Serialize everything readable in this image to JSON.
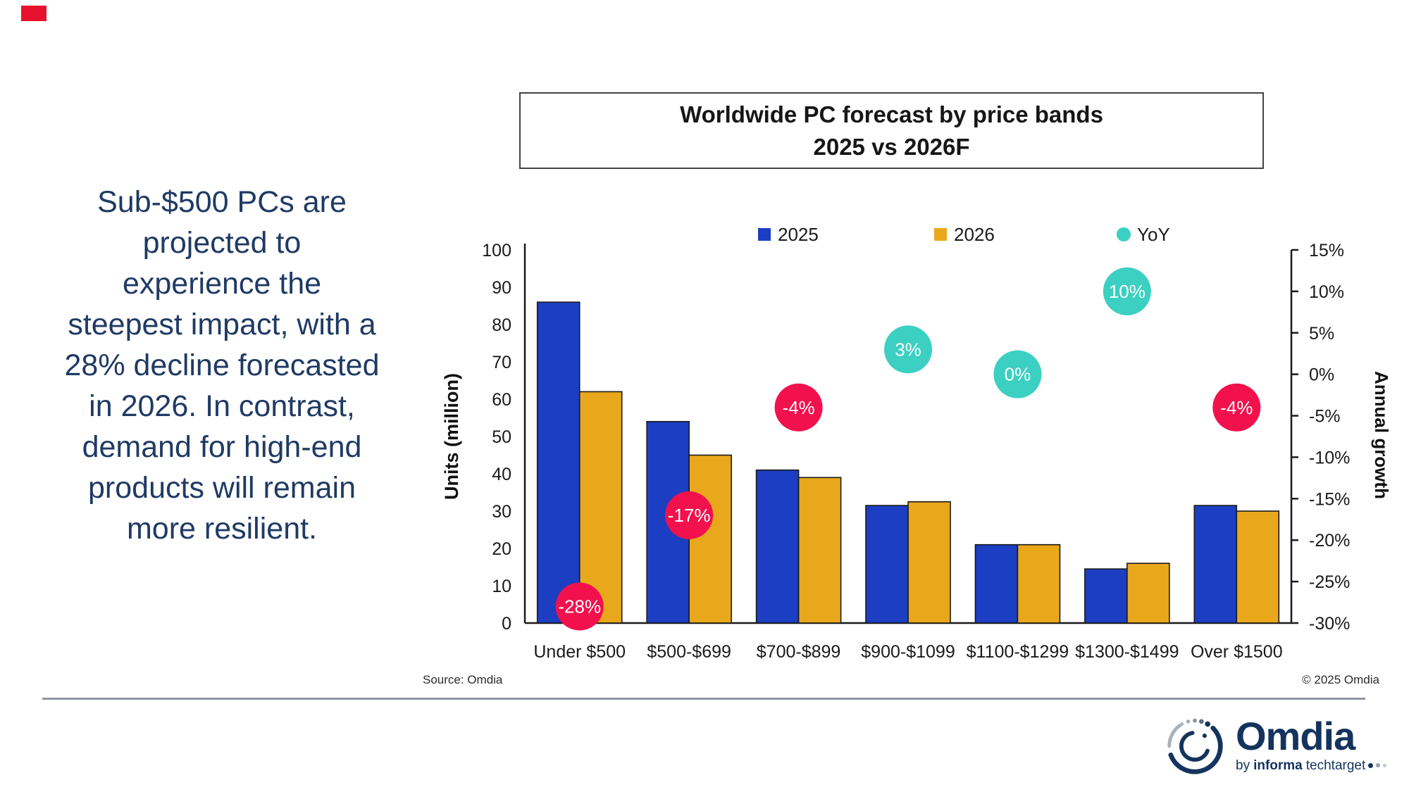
{
  "brand": {
    "accent_color": "#e8112d"
  },
  "narrative": {
    "text": "Sub-$500 PCs are\nprojected to\nexperience the\nsteepest impact, with a\n28% decline forecasted\nin 2026. In contrast,\ndemand for high-end\nproducts will remain\nmore resilient."
  },
  "title": {
    "line1": "Worldwide PC forecast by price bands",
    "line2": "2025 vs 2026F"
  },
  "chart_data": {
    "type": "bar",
    "title": "Worldwide PC forecast by price bands 2025 vs 2026F",
    "categories": [
      "Under $500",
      "$500-$699",
      "$700-$899",
      "$900-$1099",
      "$1100-$1299",
      "$1300-$1499",
      "Over $1500"
    ],
    "series": [
      {
        "name": "2025",
        "color": "#1c3ec2",
        "values": [
          86,
          54,
          41,
          31.5,
          21,
          14.5,
          31.5
        ]
      },
      {
        "name": "2026",
        "color": "#e9a81b",
        "values": [
          62,
          45,
          39,
          32.5,
          21,
          16,
          30
        ]
      }
    ],
    "yoy_series": {
      "name": "YoY",
      "values": [
        -28,
        -17,
        -4,
        3,
        0,
        10,
        -4
      ],
      "labels": [
        "-28%",
        "-17%",
        "-4%",
        "3%",
        "0%",
        "10%",
        "-4%"
      ],
      "positive_color": "#3bd0c2",
      "negative_color": "#f2114d",
      "text_color": "#ffffff"
    },
    "axes": {
      "left": {
        "label": "Units (million)",
        "min": 0,
        "max": 100,
        "step": 10,
        "ticks": [
          "0",
          "10",
          "20",
          "30",
          "40",
          "50",
          "60",
          "70",
          "80",
          "90",
          "100"
        ]
      },
      "right": {
        "label": "Annual growth",
        "min": -30,
        "max": 15,
        "step": 5,
        "ticks": [
          "15%",
          "10%",
          "5%",
          "0%",
          "-5%",
          "-10%",
          "-15%",
          "-20%",
          "-25%",
          "-30%"
        ]
      }
    },
    "legend": {
      "position": "top",
      "entries": [
        {
          "label": "2025",
          "marker": "square",
          "color": "#1c3ec2"
        },
        {
          "label": "2026",
          "marker": "square",
          "color": "#e9a81b"
        },
        {
          "label": "YoY",
          "marker": "circle",
          "color": "#3bd0c2"
        }
      ]
    },
    "grid": false,
    "xlabel": "",
    "ylabel": "Units (million)"
  },
  "footer": {
    "source": "Source: Omdia",
    "copyright": "© 2025 Omdia",
    "logo": {
      "name": "Omdia",
      "tagline_by": "by",
      "tagline_informa": "informa",
      "tagline_techtarget": "techtarget"
    }
  }
}
